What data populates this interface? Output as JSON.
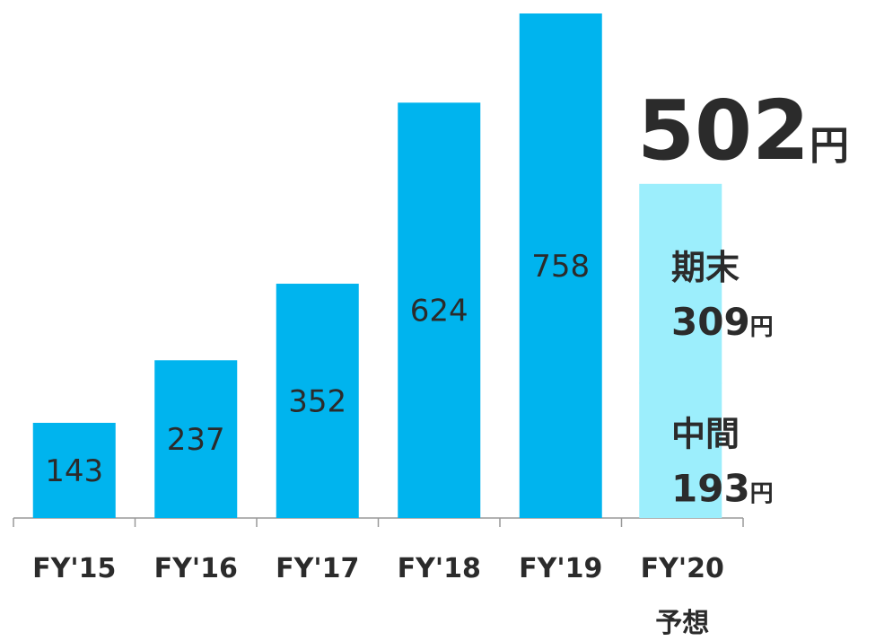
{
  "chart_data": {
    "type": "bar",
    "categories": [
      "FY'15",
      "FY'16",
      "FY'17",
      "FY'18",
      "FY'19"
    ],
    "values": [
      143,
      237,
      352,
      624,
      758
    ],
    "color": "#00b4ee",
    "forecast": {
      "category": "FY'20",
      "note": "予想",
      "color": "#9ceefc",
      "total": 502,
      "unit": "円",
      "segments": [
        {
          "name": "中間",
          "value": 193
        },
        {
          "name": "期末",
          "value": 309
        }
      ]
    }
  }
}
